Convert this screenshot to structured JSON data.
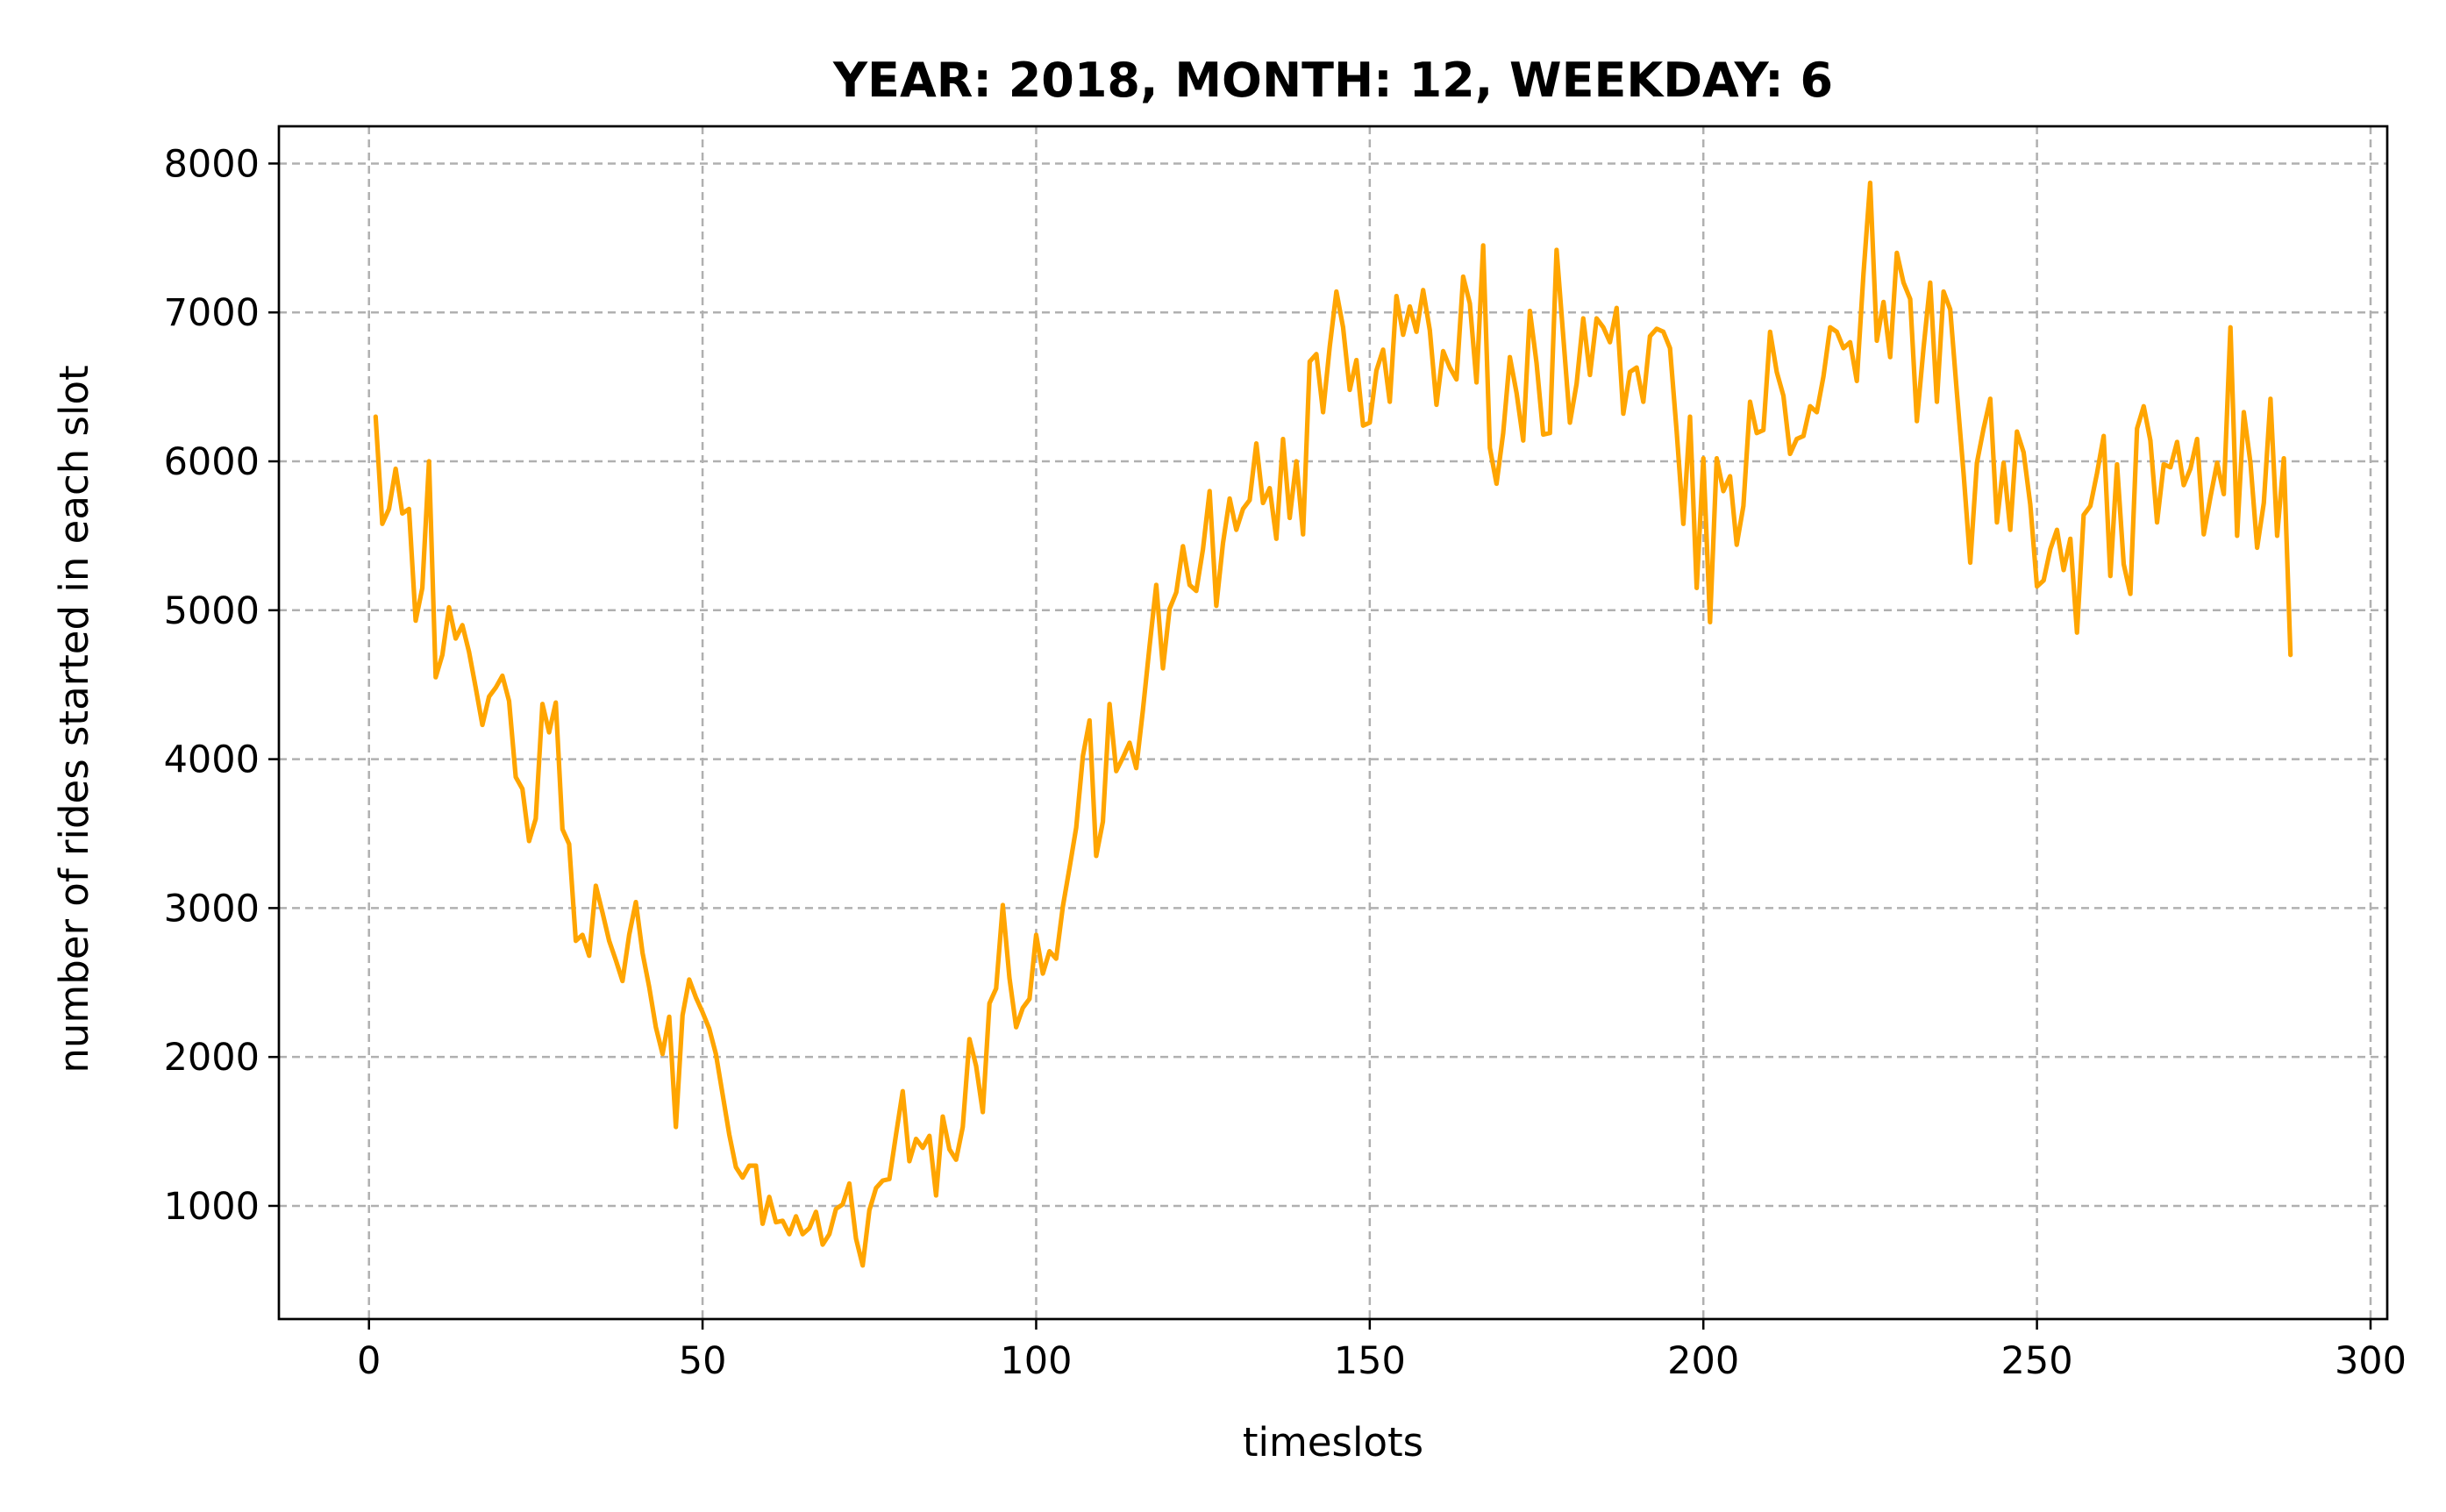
{
  "chart_data": {
    "type": "line",
    "title": "YEAR: 2018, MONTH: 12, WEEKDAY: 6",
    "xlabel": "timeslots",
    "ylabel": "number of rides started in each slot",
    "xlim": [
      -13.5,
      302.5
    ],
    "ylim": [
      240,
      8250
    ],
    "xticks": [
      0,
      50,
      100,
      150,
      200,
      250,
      300
    ],
    "yticks": [
      1000,
      2000,
      3000,
      4000,
      5000,
      6000,
      7000,
      8000
    ],
    "grid": true,
    "line_color": "#FFA500",
    "series": [
      {
        "x_start": 1,
        "x_step": 1,
        "values": [
          6300,
          5580,
          5680,
          5950,
          5650,
          5680,
          4930,
          5150,
          6000,
          4550,
          4700,
          5020,
          4810,
          4900,
          4720,
          4480,
          4230,
          4420,
          4480,
          4560,
          4390,
          3880,
          3800,
          3450,
          3600,
          4370,
          4180,
          4380,
          3530,
          3430,
          2780,
          2820,
          2680,
          3150,
          2970,
          2780,
          2650,
          2510,
          2820,
          3040,
          2700,
          2470,
          2200,
          2020,
          2270,
          1530,
          2280,
          2520,
          2400,
          2300,
          2190,
          2020,
          1750,
          1480,
          1260,
          1190,
          1270,
          1270,
          880,
          1060,
          890,
          900,
          810,
          930,
          810,
          850,
          960,
          740,
          810,
          980,
          1010,
          1150,
          780,
          600,
          970,
          1120,
          1170,
          1180,
          1480,
          1770,
          1300,
          1450,
          1390,
          1470,
          1070,
          1600,
          1380,
          1310,
          1530,
          2120,
          1940,
          1630,
          2360,
          2460,
          3020,
          2530,
          2200,
          2330,
          2390,
          2820,
          2560,
          2710,
          2660,
          3010,
          3270,
          3540,
          4020,
          4260,
          3350,
          3580,
          4370,
          3920,
          4010,
          4110,
          3940,
          4330,
          4760,
          5170,
          4610,
          5010,
          5120,
          5430,
          5170,
          5130,
          5410,
          5800,
          5030,
          5450,
          5750,
          5540,
          5680,
          5740,
          6120,
          5720,
          5820,
          5480,
          6150,
          5620,
          6000,
          5510,
          6670,
          6720,
          6330,
          6770,
          7140,
          6900,
          6480,
          6680,
          6240,
          6260,
          6610,
          6750,
          6400,
          7110,
          6850,
          7040,
          6870,
          7150,
          6880,
          6380,
          6740,
          6630,
          6550,
          7240,
          7060,
          6530,
          7450,
          6090,
          5850,
          6190,
          6700,
          6460,
          6140,
          7010,
          6660,
          6180,
          6190,
          7420,
          6840,
          6260,
          6520,
          6960,
          6580,
          6960,
          6900,
          6800,
          7030,
          6320,
          6600,
          6630,
          6400,
          6840,
          6890,
          6870,
          6760,
          6200,
          5580,
          6300,
          5150,
          6020,
          4920,
          6020,
          5800,
          5900,
          5440,
          5700,
          6400,
          6190,
          6210,
          6870,
          6600,
          6440,
          6050,
          6150,
          6170,
          6370,
          6330,
          6570,
          6900,
          6870,
          6760,
          6800,
          6540,
          7260,
          7870,
          6810,
          7070,
          6700,
          7400,
          7200,
          7090,
          6270,
          6760,
          7200,
          6400,
          7140,
          7020,
          6460,
          5920,
          5320,
          5990,
          6220,
          6420,
          5590,
          5990,
          5540,
          6200,
          6060,
          5710,
          5160,
          5200,
          5410,
          5540,
          5270,
          5480,
          4850,
          5640,
          5700,
          5920,
          6170,
          5230,
          5980,
          5310,
          5110,
          6220,
          6370,
          6140,
          5590,
          5980,
          5960,
          6130,
          5840,
          5950,
          6150,
          5510,
          5760,
          5990,
          5780,
          6900,
          5500,
          6330,
          5990,
          5420,
          5720,
          6420,
          5500,
          6020,
          4700
        ]
      }
    ]
  }
}
